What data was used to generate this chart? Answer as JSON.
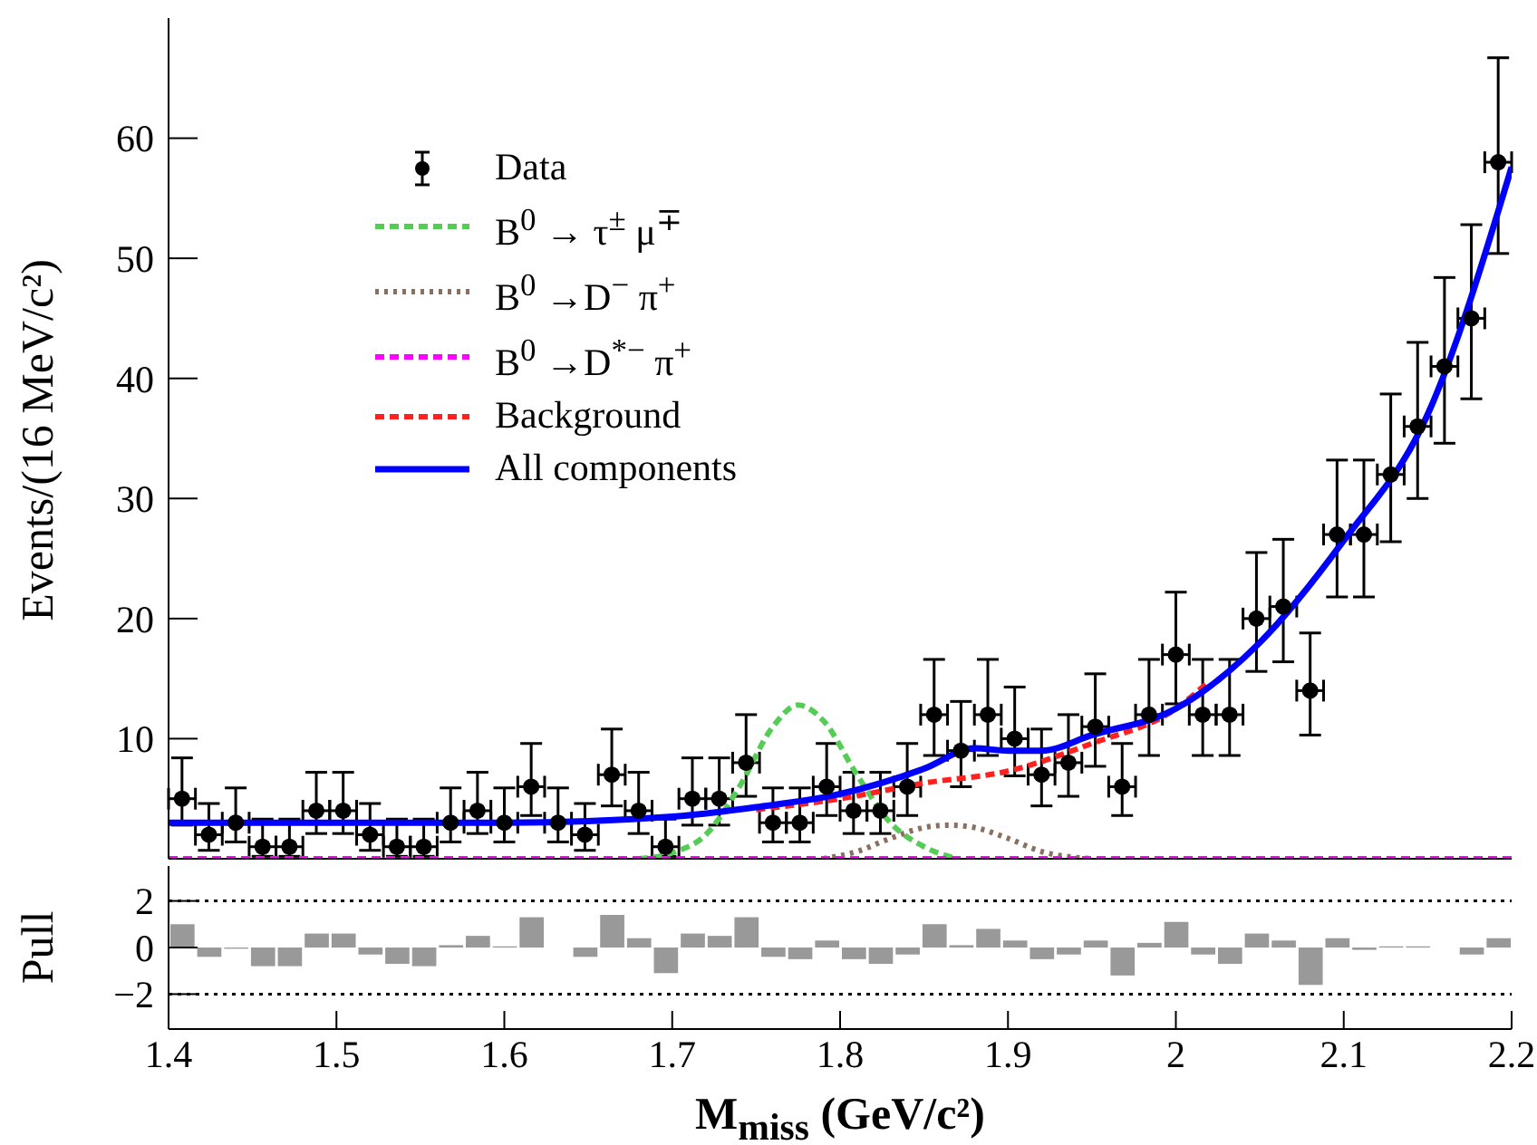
{
  "chart_data": [
    {
      "type": "scatter",
      "ylabel": "Events/(16 MeV/c²)",
      "xlim": [
        1.4,
        2.2
      ],
      "xticks": [
        1.4,
        1.5,
        1.6,
        1.7,
        1.8,
        1.9,
        2.0,
        2.1,
        2.2
      ],
      "ylim": [
        0,
        70
      ],
      "yticks": [
        10,
        20,
        30,
        40,
        50,
        60
      ],
      "tick_labels": "y",
      "legend": "top left",
      "series": [
        {
          "name": "Data",
          "type": "scatter",
          "color": "#000000",
          "marker": "circle",
          "x": [
            1.408,
            1.424,
            1.44,
            1.456,
            1.472,
            1.488,
            1.504,
            1.52,
            1.536,
            1.552,
            1.568,
            1.584,
            1.6,
            1.616,
            1.632,
            1.648,
            1.664,
            1.68,
            1.696,
            1.712,
            1.728,
            1.744,
            1.76,
            1.776,
            1.792,
            1.808,
            1.824,
            1.84,
            1.856,
            1.872,
            1.888,
            1.904,
            1.92,
            1.936,
            1.952,
            1.968,
            1.984,
            2.0,
            2.016,
            2.032,
            2.048,
            2.064,
            2.08,
            2.096,
            2.112,
            2.128,
            2.144,
            2.16,
            2.176,
            2.192
          ],
          "values": [
            5,
            2,
            3,
            1,
            1,
            4,
            4,
            2,
            1,
            1,
            3,
            4,
            3,
            6,
            3,
            2,
            7,
            4,
            1,
            5,
            5,
            8,
            3,
            3,
            6,
            4,
            4,
            6,
            12,
            9,
            12,
            10,
            7,
            8,
            11,
            6,
            12,
            17,
            12,
            12,
            20,
            21,
            14,
            27,
            27,
            32,
            36,
            41,
            45,
            58
          ],
          "errors": [
            [
              2.8,
              8.4
            ],
            [
              0.7,
              4.6
            ],
            [
              1.4,
              5.9
            ],
            [
              0.2,
              3.3
            ],
            [
              0.2,
              3.3
            ],
            [
              2.1,
              7.2
            ],
            [
              2.1,
              7.2
            ],
            [
              0.7,
              4.6
            ],
            [
              0.2,
              3.3
            ],
            [
              0.2,
              3.3
            ],
            [
              1.4,
              5.9
            ],
            [
              2.1,
              7.2
            ],
            [
              1.4,
              5.9
            ],
            [
              3.6,
              9.6
            ],
            [
              1.4,
              5.9
            ],
            [
              0.7,
              4.6
            ],
            [
              4.4,
              10.8
            ],
            [
              2.1,
              7.2
            ],
            [
              0.2,
              3.3
            ],
            [
              2.8,
              8.4
            ],
            [
              2.8,
              8.4
            ],
            [
              5.2,
              12
            ],
            [
              1.4,
              5.9
            ],
            [
              1.4,
              5.9
            ],
            [
              3.6,
              9.6
            ],
            [
              2.1,
              7.2
            ],
            [
              2.1,
              7.2
            ],
            [
              3.6,
              9.6
            ],
            [
              8.6,
              16.6
            ],
            [
              6,
              13.1
            ],
            [
              8.6,
              16.6
            ],
            [
              6.9,
              14.3
            ],
            [
              4.4,
              10.8
            ],
            [
              5.2,
              12
            ],
            [
              7.7,
              15.4
            ],
            [
              3.6,
              9.6
            ],
            [
              8.6,
              16.6
            ],
            [
              12.9,
              22.2
            ],
            [
              8.6,
              16.6
            ],
            [
              8.6,
              16.6
            ],
            [
              15.6,
              25.5
            ],
            [
              16.4,
              26.6
            ],
            [
              10.3,
              18.8
            ],
            [
              21.8,
              33.2
            ],
            [
              21.8,
              33.2
            ],
            [
              26.4,
              38.7
            ],
            [
              30,
              43
            ],
            [
              34.6,
              48.4
            ],
            [
              38.3,
              52.8
            ],
            [
              50.4,
              66.7
            ]
          ],
          "xerrors": [
            0.008,
            0.008,
            0.008,
            0.008,
            0.008,
            0.008,
            0.008,
            0.008,
            0.008,
            0.008,
            0.008,
            0.008,
            0.008,
            0.008,
            0.008,
            0.008,
            0.008,
            0.008,
            0.008,
            0.008,
            0.008,
            0.008,
            0.008,
            0.008,
            0.008,
            0.008,
            0.008,
            0.008,
            0.008,
            0.008,
            0.008,
            0.008,
            0.008,
            0.008,
            0.008,
            0.008,
            0.008,
            0.008,
            0.008,
            0.008,
            0.008,
            0.008,
            0.008,
            0.008,
            0.008,
            0.008,
            0.008,
            0.008,
            0.008,
            0.008
          ]
        },
        {
          "name": "B$^{0}$ → τ$^{±}$ μ$^{∓}$",
          "type": "line",
          "color": "#55cc55",
          "marker": "none",
          "line_style": "dashed",
          "x": [
            1.68,
            1.7,
            1.72,
            1.74,
            1.76,
            1.775,
            1.79,
            1.81,
            1.83,
            1.85,
            1.87
          ],
          "values": [
            0,
            0.5,
            2,
            6,
            11,
            12.8,
            11.5,
            7,
            3,
            1,
            0
          ]
        },
        {
          "name": "B$^{0}$ →D$^{−}$ π$^{+}$",
          "type": "line",
          "color": "#8b6f5e",
          "marker": "none",
          "line_style": "dotted",
          "x": [
            1.79,
            1.81,
            1.83,
            1.85,
            1.865,
            1.88,
            1.9,
            1.92,
            1.95
          ],
          "values": [
            0,
            0.6,
            1.7,
            2.6,
            2.8,
            2.6,
            1.7,
            0.6,
            0
          ]
        },
        {
          "name": "B$^{0}$ →D$^{*−}$ π$^{+}$",
          "type": "line",
          "color": "#ff00ff",
          "marker": "none",
          "line_style": "dashed",
          "x": [
            1.4,
            2.2
          ],
          "values": [
            0,
            0
          ]
        },
        {
          "name": "Background",
          "type": "line",
          "color": "#ff2020",
          "marker": "none",
          "line_style": "dashed",
          "x": [
            1.75,
            1.8,
            1.85,
            1.9,
            1.95,
            2.0,
            2.02
          ],
          "values": [
            4.1,
            5,
            6.3,
            7.3,
            9.6,
            12.5,
            14.8
          ]
        },
        {
          "name": "All components",
          "type": "line",
          "color": "#0000ff",
          "marker": "none",
          "line_style": "solid",
          "x": [
            1.4,
            1.5,
            1.6,
            1.7,
            1.75,
            1.8,
            1.85,
            1.88,
            1.9,
            1.92,
            1.95,
            2.0,
            2.05,
            2.1,
            2.15,
            2.2
          ],
          "values": [
            3,
            3,
            3,
            3.5,
            4.3,
            5.4,
            7.5,
            9.2,
            9,
            9,
            10.3,
            12.5,
            18,
            26.5,
            37,
            57.6
          ]
        }
      ]
    },
    {
      "type": "bar",
      "ylabel": "Pull",
      "xlabel": "M$_{miss}$ (GeV/c²)",
      "color": "#999999",
      "xlim": [
        1.4,
        2.2
      ],
      "xticks": [
        1.4,
        1.5,
        1.6,
        1.7,
        1.8,
        1.9,
        2,
        2.1,
        2.2
      ],
      "ylim": [
        -3.5,
        3.5
      ],
      "yticks": [
        {
          "value": -2,
          "label": "−2"
        },
        0,
        2
      ],
      "ref_lines": [
        {
          "axis": "y",
          "value": 2,
          "line_style": "dotted",
          "color": "#000000"
        },
        {
          "axis": "y",
          "value": -2,
          "line_style": "dotted",
          "color": "#000000"
        }
      ],
      "x": [
        1.408,
        1.424,
        1.44,
        1.456,
        1.472,
        1.488,
        1.504,
        1.52,
        1.536,
        1.552,
        1.568,
        1.584,
        1.6,
        1.616,
        1.632,
        1.648,
        1.664,
        1.68,
        1.696,
        1.712,
        1.728,
        1.744,
        1.76,
        1.776,
        1.792,
        1.808,
        1.824,
        1.84,
        1.856,
        1.872,
        1.888,
        1.904,
        1.92,
        1.936,
        1.952,
        1.968,
        1.984,
        2.0,
        2.016,
        2.032,
        2.048,
        2.064,
        2.08,
        2.096,
        2.112,
        2.128,
        2.144,
        2.16,
        2.176,
        2.192
      ],
      "values": [
        1.0,
        -0.4,
        -0.05,
        -0.8,
        -0.8,
        0.6,
        0.6,
        -0.3,
        -0.7,
        -0.8,
        0.1,
        0.5,
        0.05,
        1.3,
        0,
        -0.4,
        1.4,
        0.4,
        -1.1,
        0.6,
        0.5,
        1.3,
        -0.4,
        -0.5,
        0.3,
        -0.5,
        -0.7,
        -0.3,
        1.0,
        0.1,
        0.8,
        0.3,
        -0.5,
        -0.3,
        0.3,
        -1.2,
        0.2,
        1.1,
        -0.3,
        -0.7,
        0.6,
        0.3,
        -1.6,
        0.4,
        -0.1,
        0.05,
        0.05,
        0,
        -0.3,
        0.4
      ]
    }
  ]
}
